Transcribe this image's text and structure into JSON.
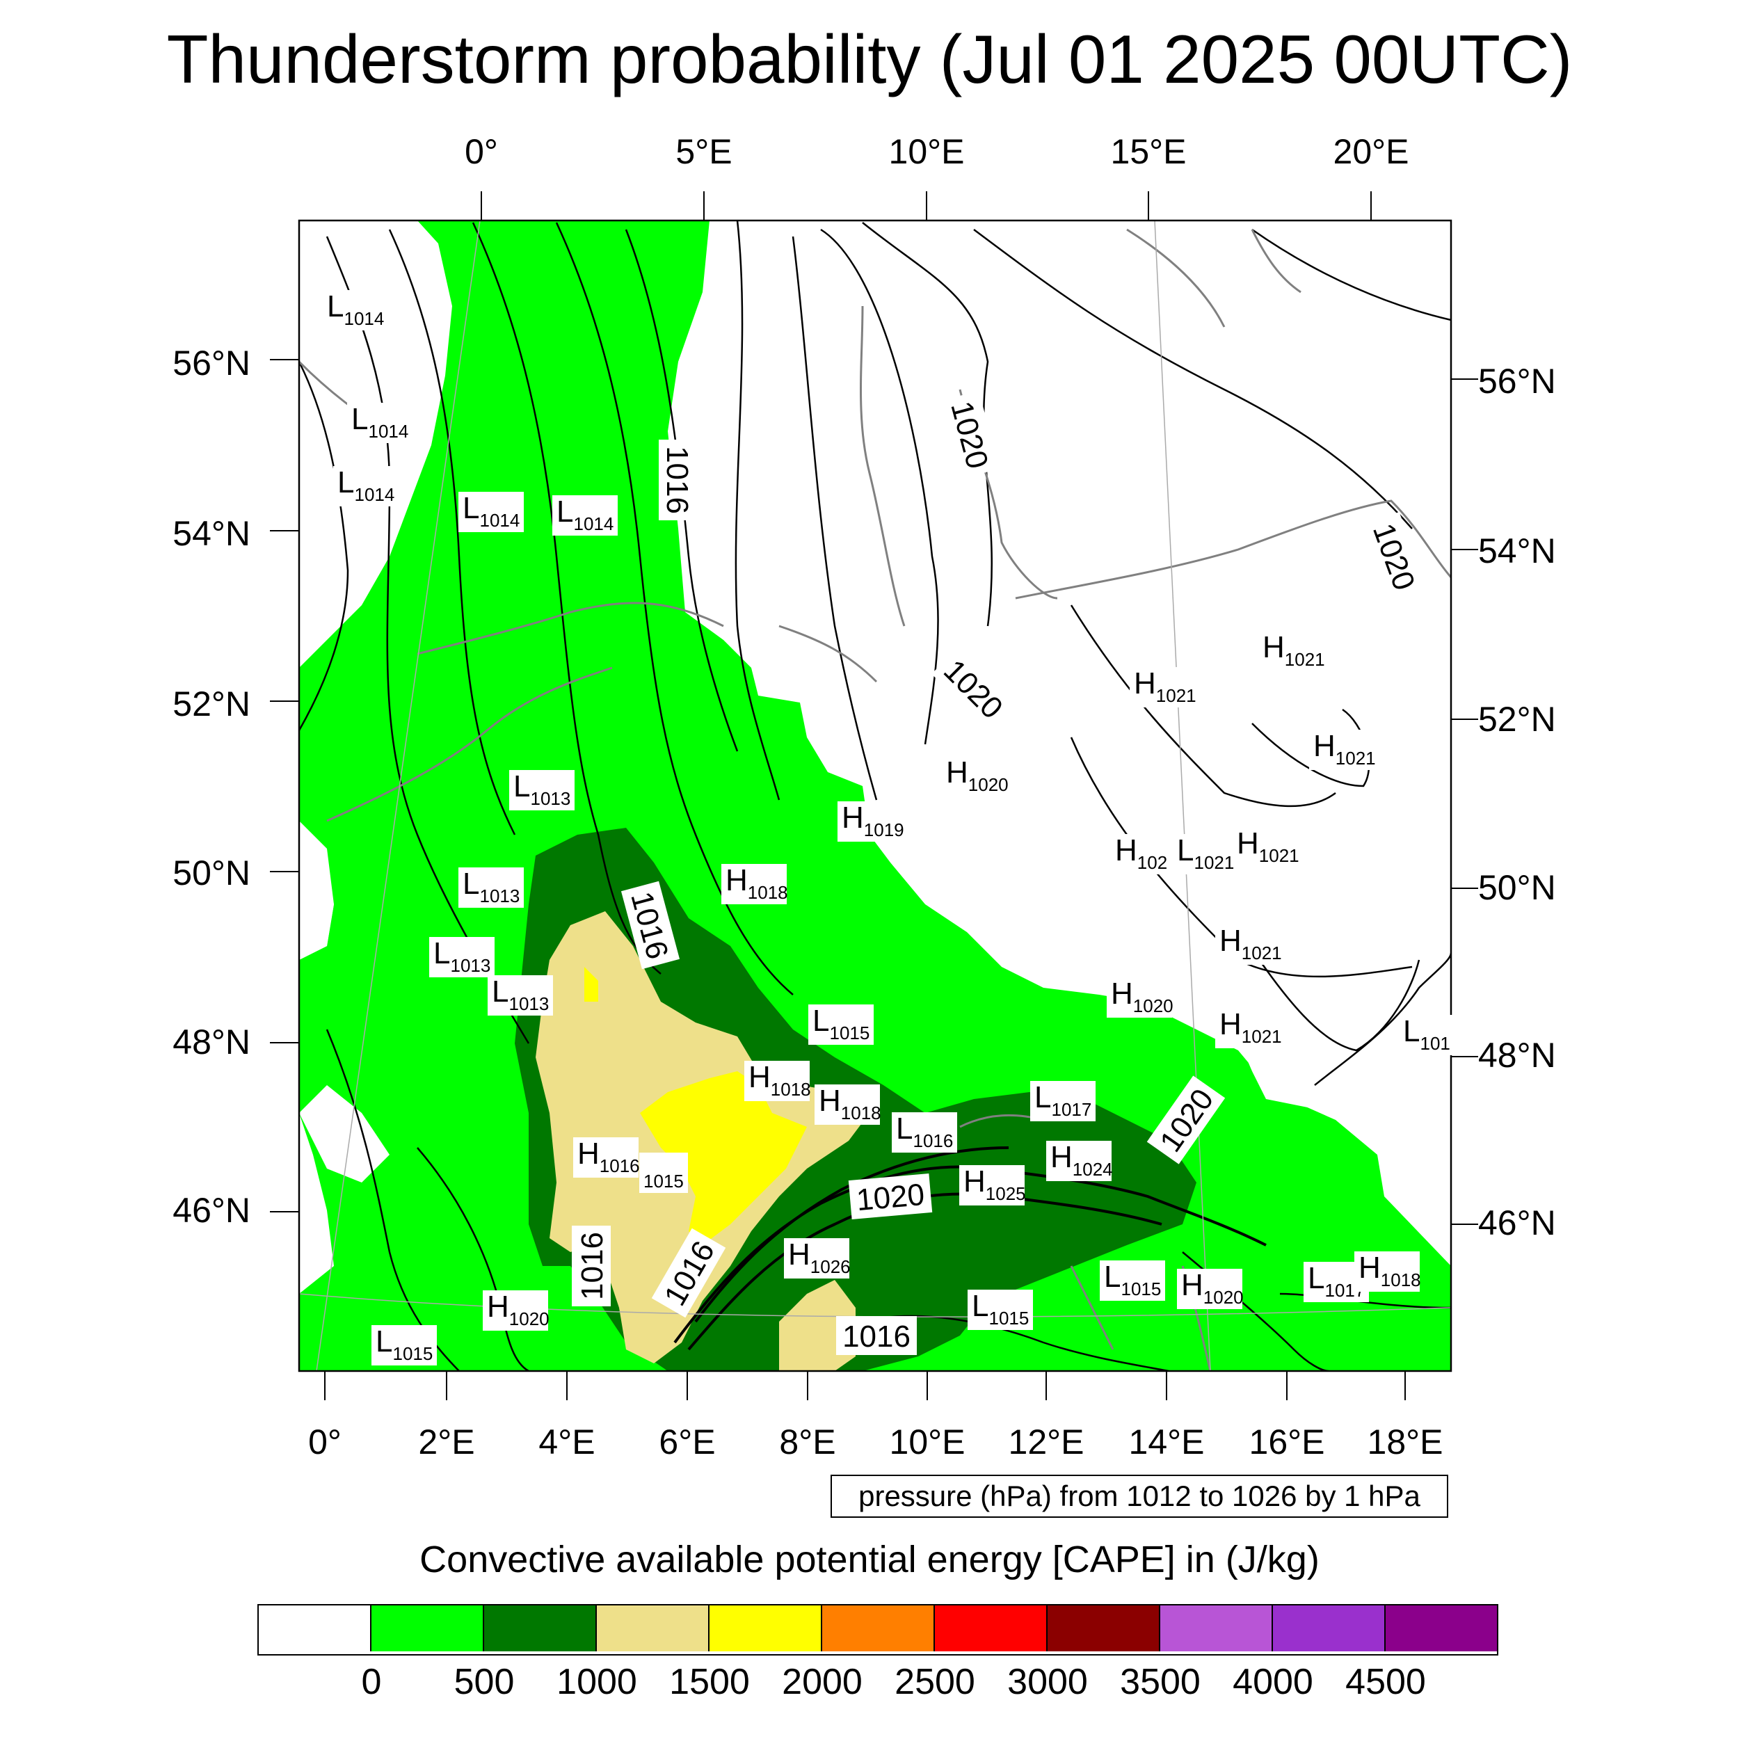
{
  "title": "Thunderstorm probability (Jul 01 2025 00UTC)",
  "top_lon_labels": [
    "0°",
    "5°E",
    "10°E",
    "15°E",
    "20°E"
  ],
  "bottom_lon_labels": [
    "0°",
    "2°E",
    "4°E",
    "6°E",
    "8°E",
    "10°E",
    "12°E",
    "14°E",
    "16°E",
    "18°E"
  ],
  "left_lat_labels": [
    "56°N",
    "54°N",
    "52°N",
    "50°N",
    "48°N",
    "46°N"
  ],
  "right_lat_labels": [
    "56°N",
    "54°N",
    "52°N",
    "50°N",
    "48°N",
    "46°N"
  ],
  "pressure_note": "pressure (hPa) from 1012 to 1026 by 1 hPa",
  "cape_title": "Convective available potential energy [CAPE] in (J/kg)",
  "colorbar": {
    "colors": [
      "#ffffff",
      "#00ff00",
      "#007800",
      "#eee08a",
      "#ffff00",
      "#ff7f00",
      "#ff0000",
      "#8b0000",
      "#b855d6",
      "#9a30cd",
      "#8b008b"
    ],
    "labels": [
      "0",
      "500",
      "1000",
      "1500",
      "2000",
      "2500",
      "3000",
      "3500",
      "4000",
      "4500"
    ]
  },
  "pressure_centers": [
    {
      "type": "L",
      "value": "1014"
    },
    {
      "type": "L",
      "value": "1014"
    },
    {
      "type": "L",
      "value": "1014"
    },
    {
      "type": "L",
      "value": "1014"
    },
    {
      "type": "L",
      "value": "1014"
    },
    {
      "type": "L",
      "value": "1013"
    },
    {
      "type": "L",
      "value": "1013"
    },
    {
      "type": "L",
      "value": "1013"
    },
    {
      "type": "L",
      "value": "1013"
    },
    {
      "type": "H",
      "value": "1018"
    },
    {
      "type": "H",
      "value": "1019"
    },
    {
      "type": "H",
      "value": "1020"
    },
    {
      "type": "H",
      "value": "1021"
    },
    {
      "type": "H",
      "value": "1021"
    },
    {
      "type": "H",
      "value": "1021"
    },
    {
      "type": "H",
      "value": "102"
    },
    {
      "type": "L",
      "value": "1021"
    },
    {
      "type": "H",
      "value": "1021"
    },
    {
      "type": "H",
      "value": "1021"
    },
    {
      "type": "H",
      "value": "1020"
    },
    {
      "type": "H",
      "value": "1021"
    },
    {
      "type": "L",
      "value": "101"
    },
    {
      "type": "L",
      "value": "1015"
    },
    {
      "type": "H",
      "value": "1018"
    },
    {
      "type": "H",
      "value": "1018"
    },
    {
      "type": "L",
      "value": "1017"
    },
    {
      "type": "L",
      "value": "1016"
    },
    {
      "type": "H",
      "value": "1016"
    },
    {
      "type": "",
      "value": "1015"
    },
    {
      "type": "H",
      "value": "1025"
    },
    {
      "type": "H",
      "value": "1024"
    },
    {
      "type": "H",
      "value": "1026"
    },
    {
      "type": "L",
      "value": "1015"
    },
    {
      "type": "L",
      "value": "1015"
    },
    {
      "type": "H",
      "value": "1020"
    },
    {
      "type": "L",
      "value": "1017"
    },
    {
      "type": "H",
      "value": "1018"
    },
    {
      "type": "H",
      "value": "1020"
    },
    {
      "type": "L",
      "value": "1015"
    }
  ],
  "isobar_labels": [
    "1016",
    "1020",
    "1020",
    "1020",
    "1016",
    "1020",
    "1020",
    "1016",
    "1016",
    "1016"
  ]
}
